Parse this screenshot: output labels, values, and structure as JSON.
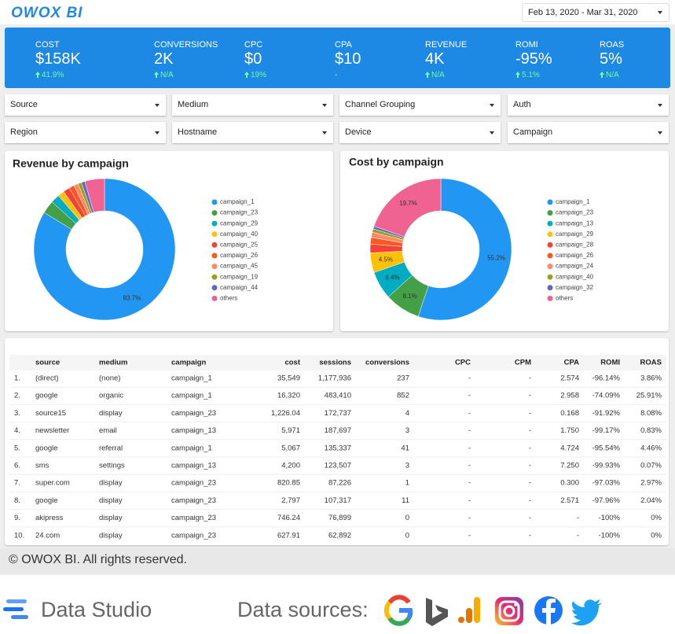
{
  "header": {
    "logo": "OWOX BI",
    "date_range": "Feb 13, 2020 - Mar 31, 2020"
  },
  "kpis": [
    {
      "label": "COST",
      "value": "$158K",
      "change": "41.9%",
      "trend": "up"
    },
    {
      "label": "CONVERSIONS",
      "value": "2K",
      "change": "N/A",
      "trend": "up"
    },
    {
      "label": "CPC",
      "value": "$0",
      "change": "19%",
      "trend": "up"
    },
    {
      "label": "CPA",
      "value": "$10",
      "change": "-",
      "trend": null
    },
    {
      "label": "REVENUE",
      "value": "4K",
      "change": "N/A",
      "trend": "up"
    },
    {
      "label": "ROMI",
      "value": "-95%",
      "change": "5.1%",
      "trend": "up"
    },
    {
      "label": "ROAS",
      "value": "5%",
      "change": "N/A",
      "trend": "up"
    }
  ],
  "filters": [
    "Source",
    "Medium",
    "Channel Grouping",
    "Auth",
    "Region",
    "Hostname",
    "Device",
    "Campaign"
  ],
  "chart_data": [
    {
      "type": "pie",
      "title": "Revenue by campaign",
      "categories": [
        "campaign_1",
        "campaign_23",
        "campaign_29",
        "campaign_40",
        "campaign_25",
        "campaign_26",
        "campaign_45",
        "campaign_19",
        "campaign_44",
        "others"
      ],
      "values": [
        83.7,
        3,
        2,
        1.5,
        1.5,
        1.2,
        1,
        0.8,
        0.8,
        4.5
      ],
      "value_labels": [
        "83.7%",
        null,
        null,
        null,
        null,
        null,
        null,
        null,
        null,
        null
      ],
      "colors": [
        "#2196f3",
        "#43a047",
        "#00acc1",
        "#ffc107",
        "#f44336",
        "#ff5722",
        "#ff8a65",
        "#9e9d24",
        "#5c6bc0",
        "#f06292"
      ]
    },
    {
      "type": "pie",
      "title": "Cost by campaign",
      "categories": [
        "campaign_1",
        "campaign_23",
        "campaign_13",
        "campaign_29",
        "campaign_28",
        "campaign_26",
        "campaign_24",
        "campaign_40",
        "campaign_32",
        "others"
      ],
      "values": [
        55.2,
        8.1,
        6.4,
        4.5,
        2,
        1.5,
        1.2,
        0.8,
        0.6,
        19.7
      ],
      "value_labels": [
        "55.2%",
        "8.1%",
        "6.4%",
        "4.5%",
        null,
        null,
        null,
        null,
        null,
        "19.7%"
      ],
      "colors": [
        "#2196f3",
        "#43a047",
        "#00acc1",
        "#ffc107",
        "#f44336",
        "#ff5722",
        "#ff8a65",
        "#9e9d24",
        "#5c6bc0",
        "#f06292"
      ]
    }
  ],
  "table": {
    "columns": [
      "source",
      "medium",
      "campaign",
      "cost",
      "sessions",
      "conversions",
      "CPC",
      "CPM",
      "CPA",
      "ROMI",
      "ROAS"
    ],
    "rows": [
      [
        "1.",
        "(direct)",
        "(none)",
        "campaign_1",
        "35,549",
        "1,177,936",
        "237",
        "-",
        "-",
        "2.574",
        "-96.14%",
        "3.86%"
      ],
      [
        "2.",
        "google",
        "organic",
        "campaign_1",
        "16,320",
        "483,410",
        "852",
        "-",
        "-",
        "2.958",
        "-74.09%",
        "25.91%"
      ],
      [
        "3.",
        "source15",
        "display",
        "campaign_23",
        "1,226.04",
        "172,737",
        "4",
        "-",
        "-",
        "0.168",
        "-91.92%",
        "8.08%"
      ],
      [
        "4.",
        "newsletter",
        "email",
        "campaign_13",
        "5,971",
        "187,697",
        "3",
        "-",
        "-",
        "1.750",
        "-99.17%",
        "0.83%"
      ],
      [
        "5.",
        "google",
        "referral",
        "campaign_1",
        "5,067",
        "135,337",
        "41",
        "-",
        "-",
        "4.724",
        "-95.54%",
        "4.46%"
      ],
      [
        "6.",
        "sms",
        "settings",
        "campaign_13",
        "4,200",
        "123,507",
        "3",
        "-",
        "-",
        "7.250",
        "-99.93%",
        "0.07%"
      ],
      [
        "7.",
        "super.com",
        "display",
        "campaign_23",
        "820.85",
        "87,226",
        "1",
        "-",
        "-",
        "0.300",
        "-97.03%",
        "2.97%"
      ],
      [
        "8.",
        "google",
        "display",
        "campaign_23",
        "2,797",
        "107,317",
        "11",
        "-",
        "-",
        "2.571",
        "-97.96%",
        "2.04%"
      ],
      [
        "9.",
        "akipress",
        "display",
        "campaign_23",
        "746.24",
        "76,899",
        "0",
        "-",
        "-",
        "-",
        "-100%",
        "0%"
      ],
      [
        "10.",
        "24.com",
        "display",
        "campaign_23",
        "627.91",
        "62,892",
        "0",
        "-",
        "-",
        "-",
        "-100%",
        "0%"
      ]
    ]
  },
  "footer": {
    "copyright": "© OWOX BI. All rights reserved.",
    "product": "Data Studio",
    "sources_label": "Data sources:"
  }
}
